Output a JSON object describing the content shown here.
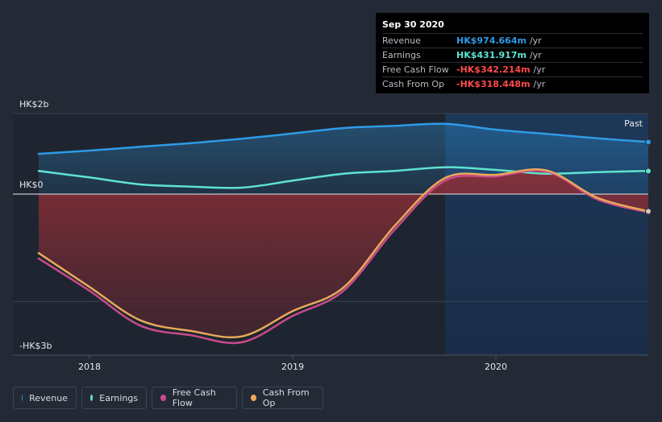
{
  "tooltip": {
    "date": "Sep 30 2020",
    "rows": [
      {
        "label": "Revenue",
        "value": "HK$974.664m",
        "unit": "/yr",
        "color": "#2e9be6"
      },
      {
        "label": "Earnings",
        "value": "HK$431.917m",
        "unit": "/yr",
        "color": "#5fe3d0"
      },
      {
        "label": "Free Cash Flow",
        "value": "-HK$342.214m",
        "unit": "/yr",
        "color": "#ff4a4a"
      },
      {
        "label": "Cash From Op",
        "value": "-HK$318.448m",
        "unit": "/yr",
        "color": "#ff4a4a"
      }
    ]
  },
  "legend": [
    {
      "label": "Revenue",
      "color": "#2e9be6"
    },
    {
      "label": "Earnings",
      "color": "#5fe3d0"
    },
    {
      "label": "Free Cash Flow",
      "color": "#c94a8c"
    },
    {
      "label": "Cash From Op",
      "color": "#e8a95a"
    }
  ],
  "chart_data": {
    "type": "line",
    "title": "",
    "xlabel": "",
    "ylabel": "",
    "y_labels": [
      "HK$2b",
      "HK$0",
      "-HK$3b"
    ],
    "x_ticks": [
      "2018",
      "2019",
      "2020"
    ],
    "past_label": "Past",
    "ylim": [
      -3,
      1.5
    ],
    "x_range": [
      2017.75,
      2020.75
    ],
    "past_start": 2019.75,
    "series": [
      {
        "name": "Revenue",
        "color": "#2e9be6",
        "x": [
          2017.75,
          2018.0,
          2018.25,
          2018.5,
          2018.75,
          2019.0,
          2019.25,
          2019.5,
          2019.75,
          2020.0,
          2020.25,
          2020.5,
          2020.75
        ],
        "y": [
          0.75,
          0.81,
          0.88,
          0.95,
          1.03,
          1.13,
          1.23,
          1.27,
          1.31,
          1.2,
          1.12,
          1.04,
          0.97
        ]
      },
      {
        "name": "Earnings",
        "color": "#5fe3d0",
        "x": [
          2017.75,
          2018.0,
          2018.25,
          2018.5,
          2018.75,
          2019.0,
          2019.25,
          2019.5,
          2019.75,
          2020.0,
          2020.25,
          2020.5,
          2020.75
        ],
        "y": [
          0.43,
          0.31,
          0.18,
          0.14,
          0.12,
          0.25,
          0.38,
          0.43,
          0.5,
          0.45,
          0.38,
          0.41,
          0.43
        ]
      },
      {
        "name": "Free Cash Flow",
        "color": "#c94a8c",
        "x": [
          2017.75,
          2018.0,
          2018.25,
          2018.5,
          2018.75,
          2019.0,
          2019.25,
          2019.5,
          2019.75,
          2020.0,
          2020.25,
          2020.5,
          2020.75
        ],
        "y": [
          -1.2,
          -1.8,
          -2.45,
          -2.63,
          -2.76,
          -2.27,
          -1.8,
          -0.67,
          0.25,
          0.33,
          0.42,
          -0.1,
          -0.34
        ]
      },
      {
        "name": "Cash From Op",
        "color": "#e8a95a",
        "x": [
          2017.75,
          2018.0,
          2018.25,
          2018.5,
          2018.75,
          2019.0,
          2019.25,
          2019.5,
          2019.75,
          2020.0,
          2020.25,
          2020.5,
          2020.75
        ],
        "y": [
          -1.1,
          -1.73,
          -2.35,
          -2.55,
          -2.65,
          -2.18,
          -1.74,
          -0.6,
          0.3,
          0.36,
          0.44,
          -0.07,
          -0.32
        ]
      }
    ]
  }
}
